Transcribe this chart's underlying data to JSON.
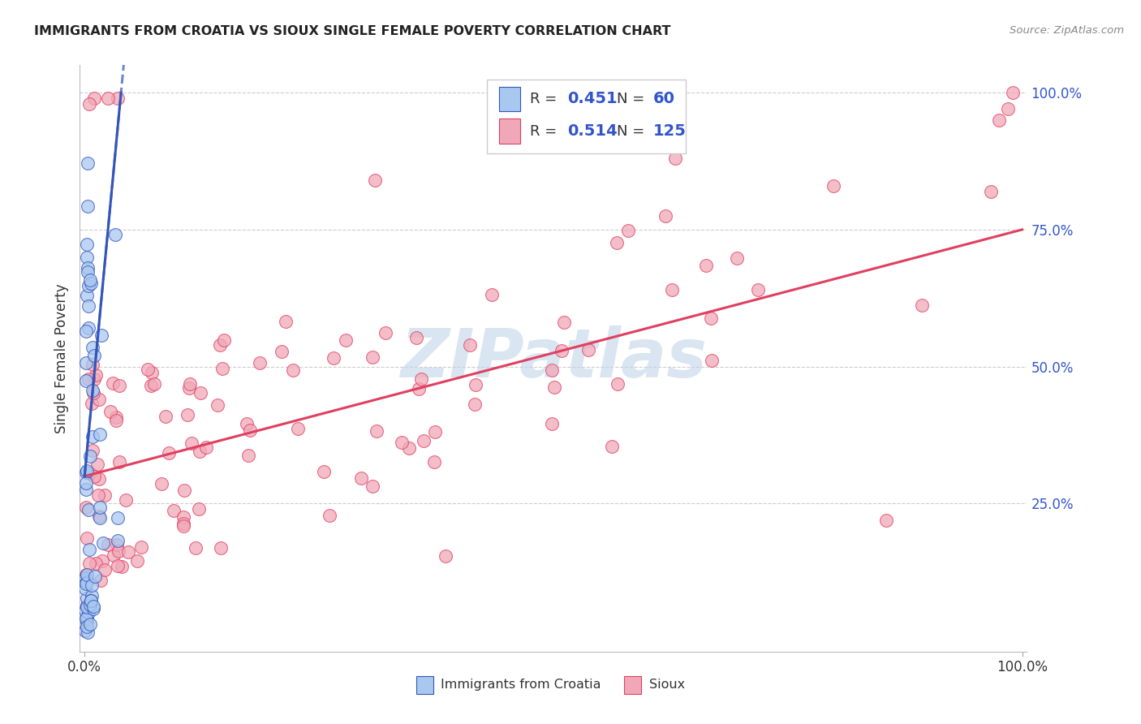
{
  "title": "IMMIGRANTS FROM CROATIA VS SIOUX SINGLE FEMALE POVERTY CORRELATION CHART",
  "source": "Source: ZipAtlas.com",
  "ylabel": "Single Female Poverty",
  "xlim": [
    -0.005,
    1.005
  ],
  "ylim": [
    -0.02,
    1.05
  ],
  "ytick_labels": [
    "25.0%",
    "50.0%",
    "75.0%",
    "100.0%"
  ],
  "ytick_positions": [
    0.25,
    0.5,
    0.75,
    1.0
  ],
  "grid_color": "#cccccc",
  "background_color": "#ffffff",
  "watermark_text": "ZIPatlas",
  "watermark_color": "#c0d4e8",
  "color_croatia": "#a8c8f0",
  "color_sioux": "#f0a8b8",
  "trendline_croatia_color": "#3355bb",
  "trendline_sioux_color": "#e04060",
  "sioux_trend_start_y": 0.3,
  "sioux_trend_end_y": 0.75,
  "croatia_trend_slope": 18.0,
  "croatia_trend_intercept": 0.3
}
